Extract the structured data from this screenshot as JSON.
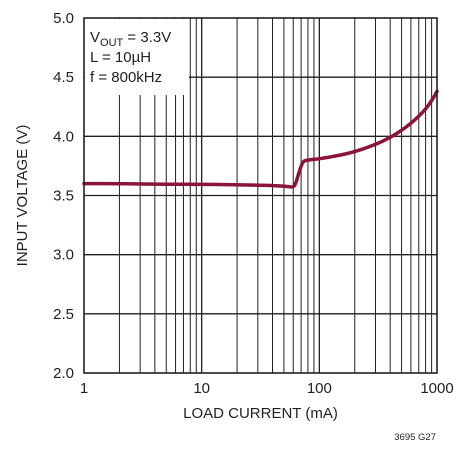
{
  "chart_data": {
    "type": "line",
    "xlabel": "LOAD CURRENT (mA)",
    "ylabel": "INPUT VOLTAGE (V)",
    "x_scale": "log",
    "xlim": [
      1,
      1000
    ],
    "ylim": [
      2.0,
      5.0
    ],
    "x_ticks": [
      "1",
      "10",
      "100",
      "1000"
    ],
    "y_ticks": [
      "2.0",
      "2.5",
      "3.0",
      "3.5",
      "4.0",
      "4.5",
      "5.0"
    ],
    "grid": true,
    "series": [
      {
        "color": "#8b1538",
        "x": [
          1,
          2,
          5,
          10,
          20,
          40,
          55,
          60,
          63,
          66,
          70,
          73,
          80,
          100,
          150,
          200,
          300,
          400,
          500,
          600,
          700,
          800,
          900,
          1000
        ],
        "y": [
          3.6,
          3.6,
          3.595,
          3.595,
          3.59,
          3.585,
          3.575,
          3.57,
          3.6,
          3.67,
          3.75,
          3.79,
          3.8,
          3.81,
          3.84,
          3.87,
          3.93,
          3.99,
          4.05,
          4.11,
          4.17,
          4.23,
          4.3,
          4.38
        ]
      }
    ],
    "annotation": {
      "lines": [
        {
          "main": "V",
          "sub": "OUT",
          "rest": " = 3.3V"
        },
        {
          "main": "L = 10µH",
          "sub": "",
          "rest": ""
        },
        {
          "main": "f = 800kHz",
          "sub": "",
          "rest": ""
        }
      ]
    },
    "figure_id": "3695 G27"
  }
}
